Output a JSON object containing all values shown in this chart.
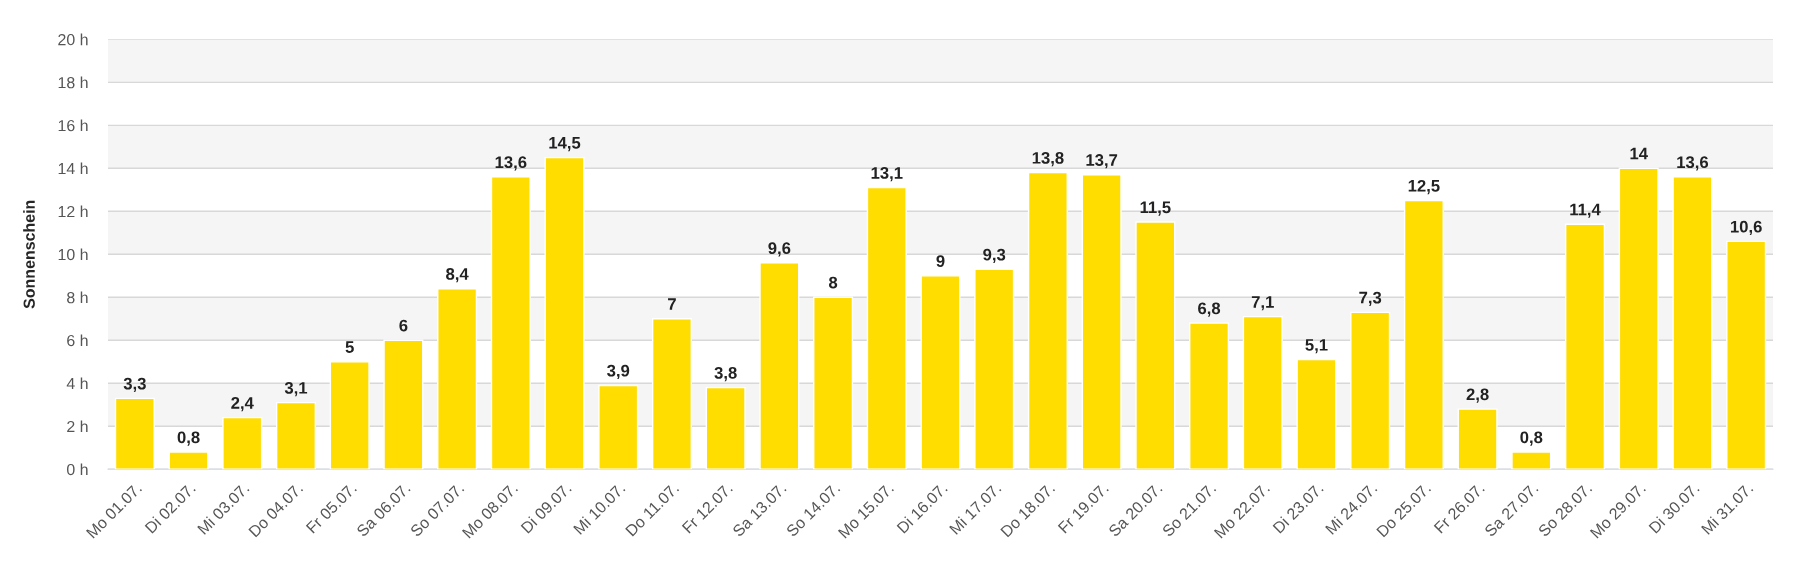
{
  "chart_data": {
    "type": "bar",
    "ylabel": "Sonnenschein",
    "categories": [
      "Mo 01.07.",
      "Di 02.07.",
      "Mi 03.07.",
      "Do 04.07.",
      "Fr 05.07.",
      "Sa 06.07.",
      "So 07.07.",
      "Mo 08.07.",
      "Di 09.07.",
      "Mi 10.07.",
      "Do 11.07.",
      "Fr 12.07.",
      "Sa 13.07.",
      "So 14.07.",
      "Mo 15.07.",
      "Di 16.07.",
      "Mi 17.07.",
      "Do 18.07.",
      "Fr 19.07.",
      "Sa 20.07.",
      "So 21.07.",
      "Mo 22.07.",
      "Di 23.07.",
      "Mi 24.07.",
      "Do 25.07.",
      "Fr 26.07.",
      "Sa 27.07.",
      "So 28.07.",
      "Mo 29.07.",
      "Di 30.07.",
      "Mi 31.07."
    ],
    "values": [
      3.3,
      0.8,
      2.4,
      3.1,
      5,
      6,
      8.4,
      13.6,
      14.5,
      3.9,
      7,
      3.8,
      9.6,
      8,
      13.1,
      9,
      9.3,
      13.8,
      13.7,
      11.5,
      6.8,
      7.1,
      5.1,
      7.3,
      12.5,
      2.8,
      0.8,
      11.4,
      14,
      13.6,
      10.6
    ],
    "value_labels": [
      "3,3",
      "0,8",
      "2,4",
      "3,1",
      "5",
      "6",
      "8,4",
      "13,6",
      "14,5",
      "3,9",
      "7",
      "3,8",
      "9,6",
      "8",
      "13,1",
      "9",
      "9,3",
      "13,8",
      "13,7",
      "11,5",
      "6,8",
      "7,1",
      "5,1",
      "7,3",
      "12,5",
      "2,8",
      "0,8",
      "11,4",
      "14",
      "13,6",
      "10,6"
    ],
    "color": "#ffdd00",
    "ylim": [
      0,
      20
    ],
    "yticks": [
      {
        "value": 0,
        "label": "0 h"
      },
      {
        "value": 2,
        "label": "2 h"
      },
      {
        "value": 4,
        "label": "4 h"
      },
      {
        "value": 6,
        "label": "6 h"
      },
      {
        "value": 8,
        "label": "8 h"
      },
      {
        "value": 10,
        "label": "10 h"
      },
      {
        "value": 12,
        "label": "12 h"
      },
      {
        "value": 14,
        "label": "14 h"
      },
      {
        "value": 16,
        "label": "16 h"
      },
      {
        "value": 18,
        "label": "18 h"
      },
      {
        "value": 20,
        "label": "20 h"
      }
    ],
    "bands": [
      {
        "axis": "y",
        "from": 2,
        "to": 4,
        "color": "#f5f5f5"
      },
      {
        "axis": "y",
        "from": 6,
        "to": 8,
        "color": "#f5f5f5"
      },
      {
        "axis": "y",
        "from": 10,
        "to": 12,
        "color": "#f5f5f5"
      },
      {
        "axis": "y",
        "from": 14,
        "to": 16,
        "color": "#f5f5f5"
      },
      {
        "axis": "y",
        "from": 18,
        "to": 20,
        "color": "#f5f5f5"
      }
    ],
    "grid": "y"
  }
}
